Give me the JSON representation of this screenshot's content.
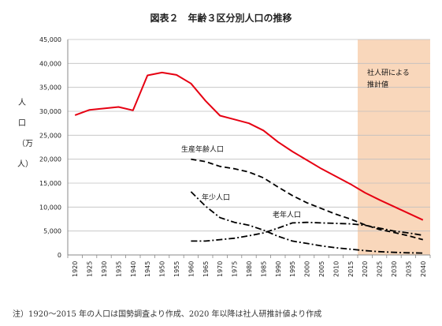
{
  "chart_data": {
    "type": "line",
    "title": "図表２　年齢３区分別人口の推移",
    "ylabel": "人口（万人）",
    "xlabel": "",
    "ylim": [
      0,
      45000
    ],
    "yticks": [
      "0",
      "5,000",
      "10,000",
      "15,000",
      "20,000",
      "25,000",
      "30,000",
      "35,000",
      "40,000",
      "45,000"
    ],
    "grid": true,
    "x": [
      1920,
      1925,
      1930,
      1935,
      1940,
      1945,
      1950,
      1955,
      1960,
      1965,
      1970,
      1975,
      1980,
      1985,
      1990,
      1995,
      2000,
      2005,
      2010,
      2015,
      2020,
      2025,
      2030,
      2035,
      2040
    ],
    "projection_start": 2020,
    "projection_label": "社人研による推計値",
    "series": [
      {
        "name": "",
        "style": "solid",
        "color": "#e60012",
        "values": [
          29200,
          30300,
          30600,
          30900,
          30200,
          37500,
          38100,
          37600,
          35800,
          32200,
          29100,
          28300,
          27500,
          26000,
          23600,
          21600,
          19800,
          18000,
          16400,
          14800,
          13000,
          11500,
          10100,
          8700,
          7300
        ]
      },
      {
        "name": "生産年齢人口",
        "style": "dashed",
        "color": "#000000",
        "values": [
          null,
          null,
          null,
          null,
          null,
          null,
          null,
          null,
          20000,
          19500,
          18500,
          18000,
          17300,
          16100,
          14200,
          12400,
          10900,
          9700,
          8500,
          7500,
          6300,
          5300,
          4700,
          4000,
          3200
        ]
      },
      {
        "name": "年少人口",
        "style": "dashdot",
        "color": "#000000",
        "values": [
          null,
          null,
          null,
          null,
          null,
          null,
          null,
          null,
          13200,
          10200,
          7800,
          6800,
          6200,
          5200,
          3900,
          2900,
          2400,
          1900,
          1500,
          1200,
          900,
          700,
          550,
          450,
          400
        ]
      },
      {
        "name": "老年人口",
        "style": "dashdot",
        "color": "#000000",
        "values": [
          null,
          null,
          null,
          null,
          null,
          null,
          null,
          null,
          2900,
          2900,
          3200,
          3500,
          4000,
          4600,
          5600,
          6700,
          6800,
          6700,
          6600,
          6500,
          6200,
          5600,
          5000,
          4600,
          4100
        ]
      }
    ]
  },
  "footnote": "注）1920～2015 年の人口は国勢調査より作成、2020 年以降は社人研推計値より作成"
}
